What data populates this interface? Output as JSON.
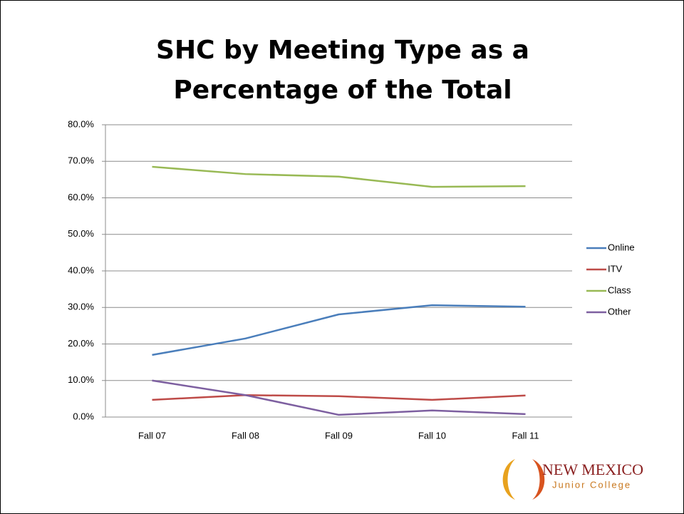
{
  "chart_data": {
    "type": "line",
    "title": "SHC by Meeting Type as a Percentage of the Total",
    "categories": [
      "Fall 07",
      "Fall 08",
      "Fall 09",
      "Fall 10",
      "Fall 11"
    ],
    "series": [
      {
        "name": "Online",
        "color": "#4a7ebb",
        "values": [
          17.0,
          21.5,
          28.1,
          30.6,
          30.2
        ]
      },
      {
        "name": "ITV",
        "color": "#be4b48",
        "values": [
          4.7,
          6.0,
          5.7,
          4.7,
          5.9
        ]
      },
      {
        "name": "Class",
        "color": "#98b954",
        "values": [
          68.5,
          66.5,
          65.8,
          63.0,
          63.2
        ]
      },
      {
        "name": "Other",
        "color": "#7d5fa0",
        "values": [
          10.0,
          6.0,
          0.6,
          1.8,
          0.8
        ]
      }
    ],
    "ylim": [
      0,
      80
    ],
    "yticks": [
      {
        "value": 0,
        "label": "0.0%"
      },
      {
        "value": 10,
        "label": "10.0%"
      },
      {
        "value": 20,
        "label": "20.0%"
      },
      {
        "value": 30,
        "label": "30.0%"
      },
      {
        "value": 40,
        "label": "40.0%"
      },
      {
        "value": 50,
        "label": "50.0%"
      },
      {
        "value": 60,
        "label": "60.0%"
      },
      {
        "value": 70,
        "label": "70.0%"
      },
      {
        "value": 80,
        "label": "80.0%"
      }
    ],
    "grid": true,
    "legend": "right"
  },
  "logo": {
    "line1": "NEW MEXICO",
    "line2": "Junior College"
  }
}
